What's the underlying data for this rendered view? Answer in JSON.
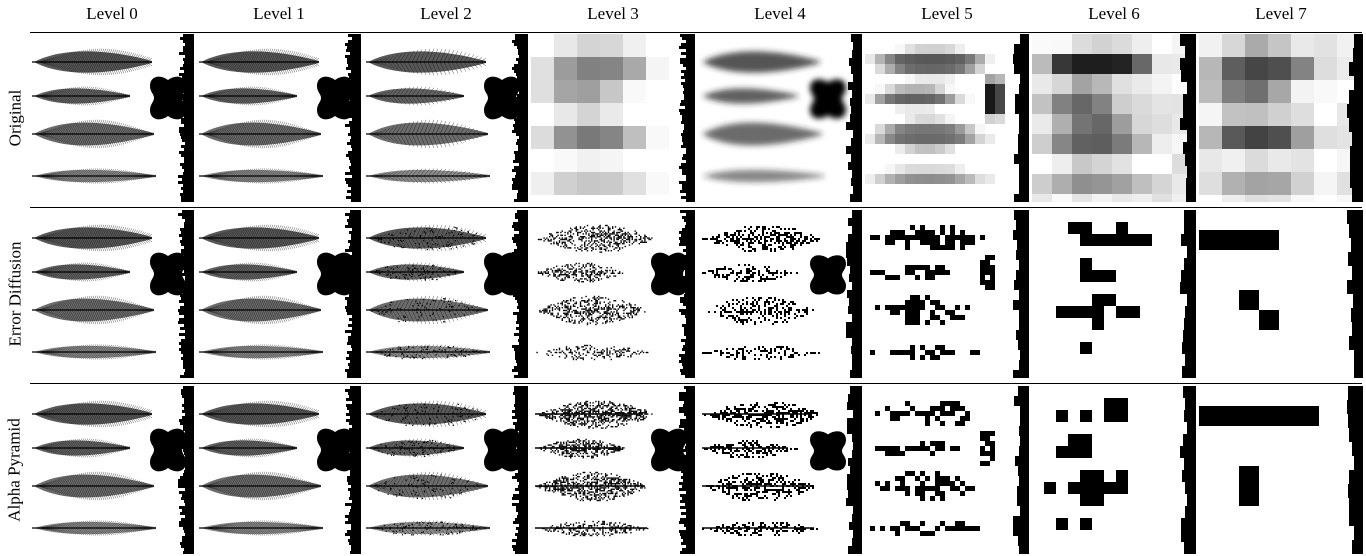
{
  "columns": [
    "Level 0",
    "Level 1",
    "Level 2",
    "Level 3",
    "Level 4",
    "Level 5",
    "Level 6",
    "Level 7"
  ],
  "rows": [
    {
      "label": "Original",
      "method": "original"
    },
    {
      "label": "Error Diffusion",
      "method": "error-diffusion"
    },
    {
      "label": "Alpha Pyramid",
      "method": "alpha-pyramid"
    }
  ],
  "cell_content": {
    "feathers": 4,
    "blob": "black-blob-shape",
    "edge": "jagged-black-edge"
  }
}
